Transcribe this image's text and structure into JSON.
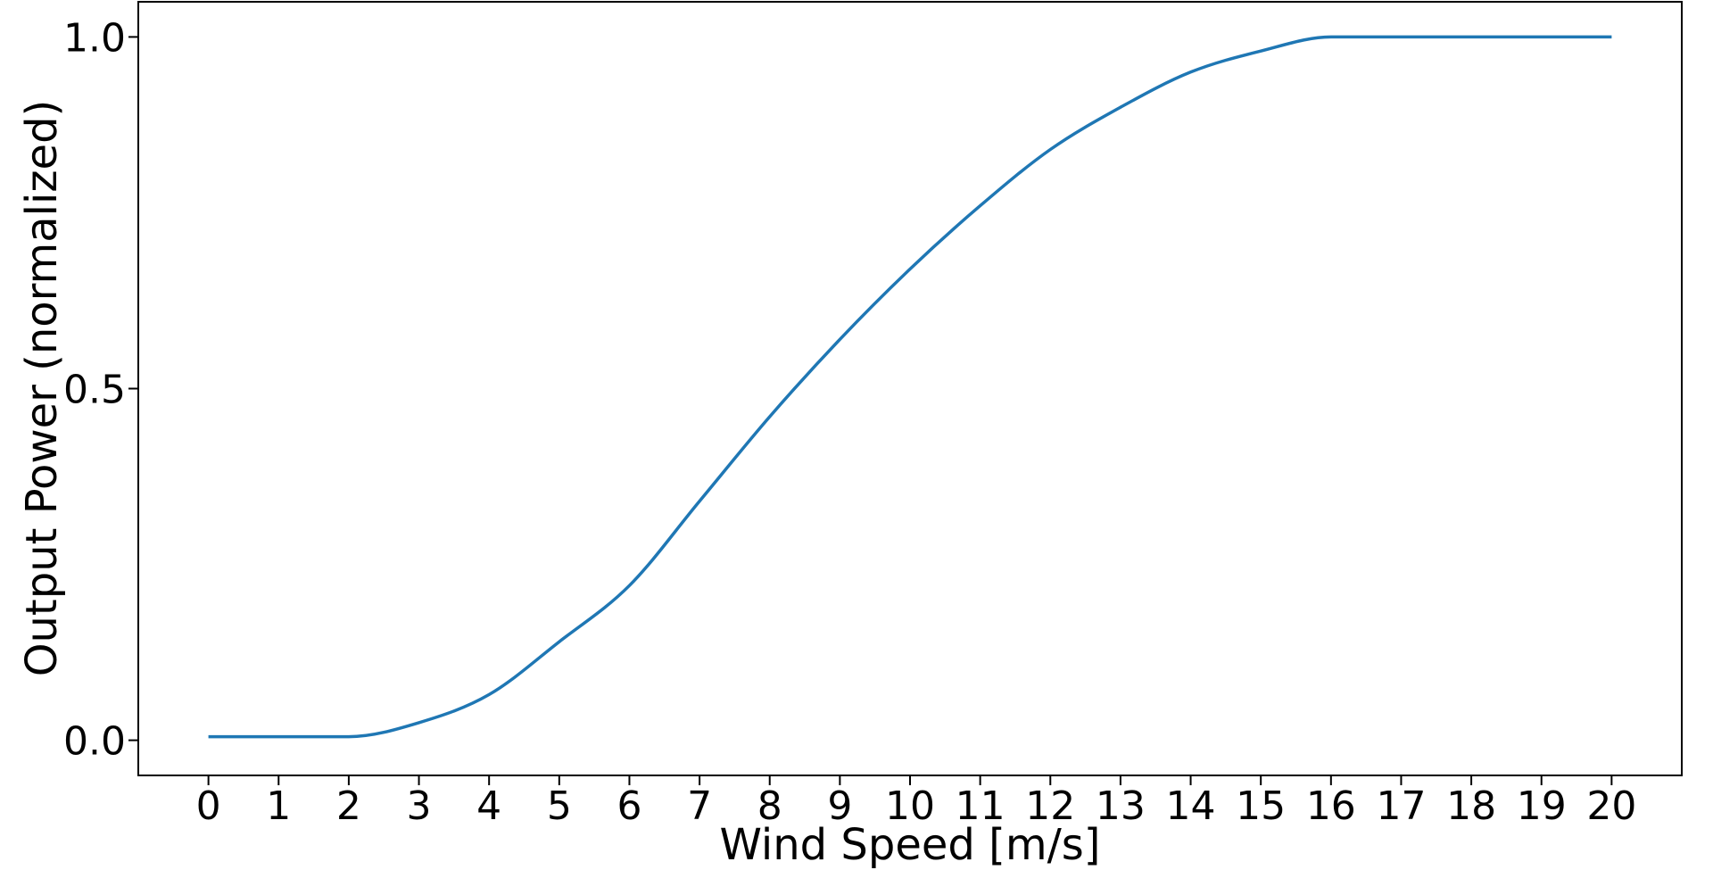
{
  "figure": {
    "background_color": "#ffffff",
    "title": ""
  },
  "chart_data": {
    "type": "line",
    "title": "",
    "xlabel": "Wind Speed [m/s]",
    "ylabel": "Output Power (normalized)",
    "x": [
      0,
      1,
      2,
      3,
      4,
      5,
      6,
      7,
      8,
      9,
      10,
      11,
      12,
      13,
      14,
      15,
      16,
      17,
      18,
      19,
      20
    ],
    "values": [
      0.005,
      0.005,
      0.005,
      0.025,
      0.065,
      0.14,
      0.22,
      0.34,
      0.46,
      0.57,
      0.67,
      0.76,
      0.84,
      0.9,
      0.95,
      0.98,
      1.0,
      1.0,
      1.0,
      1.0,
      1.0
    ],
    "xlim": [
      -1,
      21
    ],
    "ylim": [
      -0.05,
      1.05
    ],
    "xticks": [
      0,
      1,
      2,
      3,
      4,
      5,
      6,
      7,
      8,
      9,
      10,
      11,
      12,
      13,
      14,
      15,
      16,
      17,
      18,
      19,
      20
    ],
    "xtick_labels": [
      "0",
      "1",
      "2",
      "3",
      "4",
      "5",
      "6",
      "7",
      "8",
      "9",
      "10",
      "11",
      "12",
      "13",
      "14",
      "15",
      "16",
      "17",
      "18",
      "19",
      "20"
    ],
    "yticks": [
      0,
      0.5,
      1
    ],
    "ytick_labels": [
      "0.0",
      "0.5",
      "1.0"
    ],
    "grid": false,
    "legend": false,
    "line_color": "#1f77b4",
    "axis_color": "#000000",
    "background_color": "#ffffff"
  }
}
